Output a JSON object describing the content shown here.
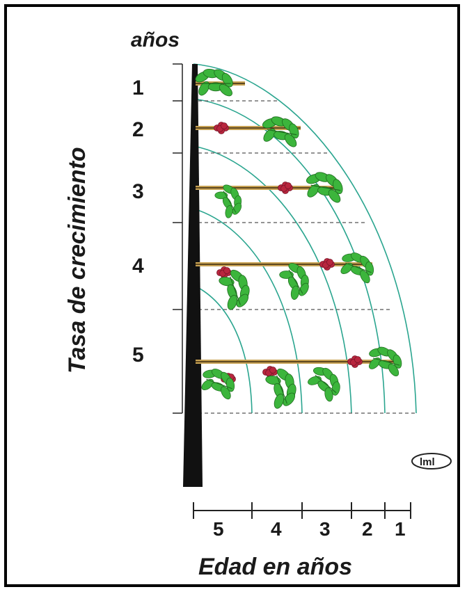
{
  "top_label": "años",
  "y_title": "Tasa de crecimiento",
  "x_title": "Edad en años",
  "row_labels": [
    "1",
    "2",
    "3",
    "4",
    "5"
  ],
  "x_ticks": [
    "5",
    "4",
    "3",
    "2",
    "1"
  ],
  "logo_text": "lml",
  "colors": {
    "arc": "#2aa58f",
    "leaf": "#3cb53c",
    "leaf_vein": "#1f6e1f",
    "fruit": "#b8263e",
    "shoot": "#c8a253",
    "trunk": "#111111",
    "dash": "#555555"
  }
}
